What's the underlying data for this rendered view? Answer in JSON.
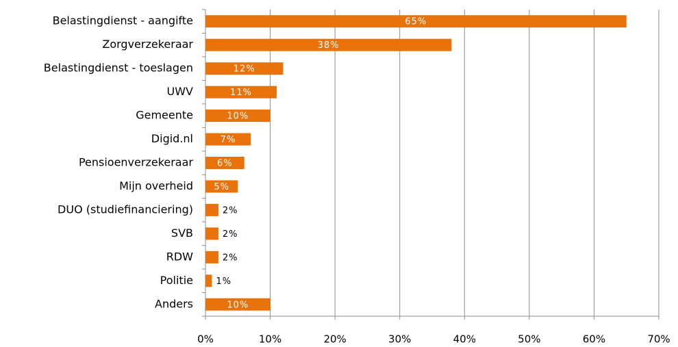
{
  "chart_data": {
    "type": "bar",
    "orientation": "horizontal",
    "categories": [
      "Belastingdienst - aangifte",
      "Zorgverzekeraar",
      "Belastingdienst - toeslagen",
      "UWV",
      "Gemeente",
      "Digid.nl",
      "Pensioenverzekeraar",
      "Mijn overheid",
      "DUO (studiefinanciering)",
      "SVB",
      "RDW",
      "Politie",
      "Anders"
    ],
    "values": [
      65,
      38,
      12,
      11,
      10,
      7,
      6,
      5,
      2,
      2,
      2,
      1,
      10
    ],
    "value_labels": [
      "65%",
      "38%",
      "12%",
      "11%",
      "10%",
      "7%",
      "6%",
      "5%",
      "2%",
      "2%",
      "2%",
      "1%",
      "10%"
    ],
    "color": "#e8720c",
    "xlim": [
      0,
      70
    ],
    "xticks": [
      {
        "value": 0,
        "label": "0%"
      },
      {
        "value": 10,
        "label": "10%"
      },
      {
        "value": 20,
        "label": "20%"
      },
      {
        "value": 30,
        "label": "30%"
      },
      {
        "value": 40,
        "label": "40%"
      },
      {
        "value": 50,
        "label": "50%"
      },
      {
        "value": 60,
        "label": "60%"
      },
      {
        "value": 70,
        "label": "70%"
      }
    ],
    "grid": true
  }
}
